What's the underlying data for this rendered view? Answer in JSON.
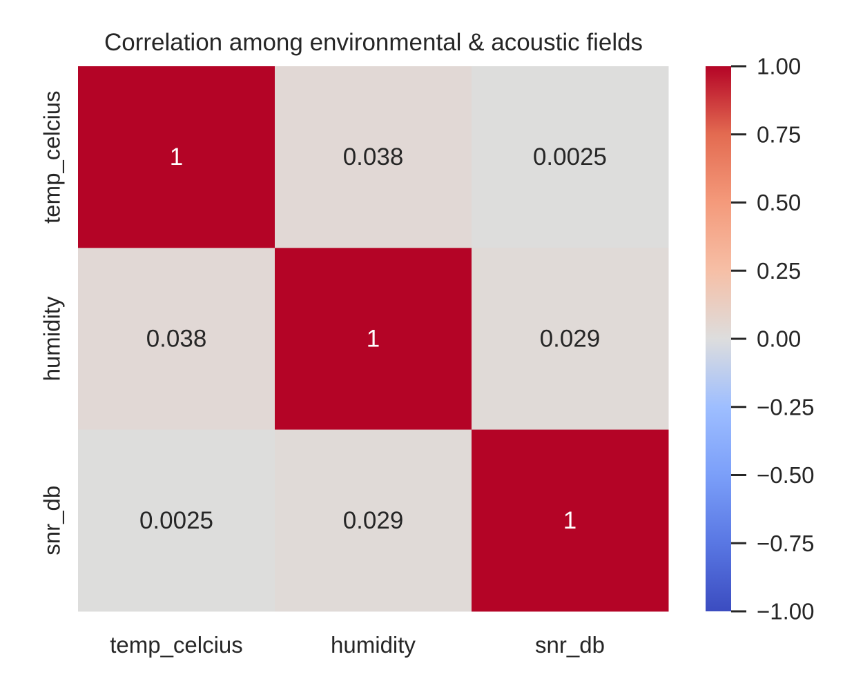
{
  "chart_data": {
    "type": "heatmap",
    "title": "Correlation among environmental & acoustic fields",
    "rows": [
      "temp_celcius",
      "humidity",
      "snr_db"
    ],
    "columns": [
      "temp_celcius",
      "humidity",
      "snr_db"
    ],
    "values": [
      [
        1,
        0.038,
        0.0025
      ],
      [
        0.038,
        1,
        0.029
      ],
      [
        0.0025,
        0.029,
        1
      ]
    ],
    "cell_labels": [
      [
        "1",
        "0.038",
        "0.0025"
      ],
      [
        "0.038",
        "1",
        "0.029"
      ],
      [
        "0.0025",
        "0.029",
        "1"
      ]
    ],
    "colormap": "coolwarm",
    "vmin": -1.0,
    "vmax": 1.0,
    "colorbar": {
      "ticks": [
        1.0,
        0.75,
        0.5,
        0.25,
        0.0,
        -0.25,
        -0.5,
        -0.75,
        -1.0
      ],
      "tick_labels": [
        "1.00",
        "0.75",
        "0.50",
        "0.25",
        "0.00",
        "−0.25",
        "−0.50",
        "−0.75",
        "−1.00"
      ]
    }
  }
}
